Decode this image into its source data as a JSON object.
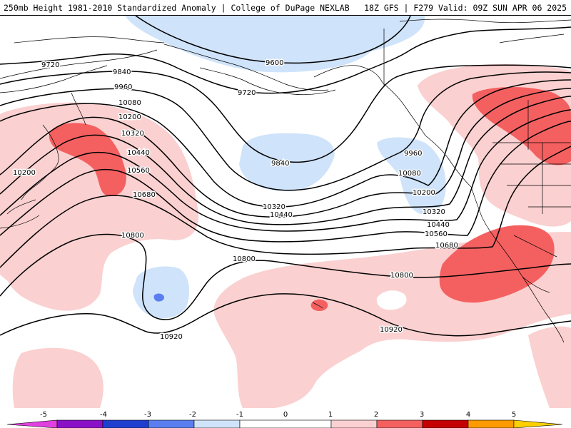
{
  "header": {
    "title_left": "250mb Height 1981-2010 Standardized Anomaly | College of DuPage NEXLAB",
    "title_right": "18Z GFS | F279 Valid: 09Z SUN APR 06 2025"
  },
  "contour_labels": [
    "9600",
    "9720",
    "9720",
    "9840",
    "9840",
    "9960",
    "9960",
    "10080",
    "10080",
    "10200",
    "10200",
    "10200",
    "10320",
    "10320",
    "10320",
    "10440",
    "10440",
    "10440",
    "10560",
    "10560",
    "10680",
    "10680",
    "10800",
    "10800",
    "10800",
    "10920",
    "10920"
  ],
  "legend": {
    "ticks": [
      "-5",
      "-4",
      "-3",
      "-2",
      "-1",
      "0",
      "1",
      "2",
      "3",
      "4",
      "5"
    ],
    "colors": {
      "neg5": "#e040e0",
      "neg4": "#8a10c8",
      "neg3": "#1f3fd0",
      "neg2": "#5a7ef0",
      "neg1": "#cfe3fa",
      "zero": "#ffffff",
      "pos1": "#fbd0d0",
      "pos2": "#f46060",
      "pos3": "#c40000",
      "pos4": "#ff9a00",
      "pos5": "#ffd000"
    }
  }
}
